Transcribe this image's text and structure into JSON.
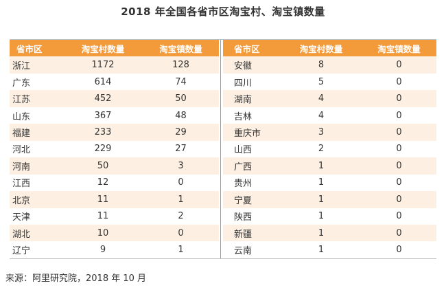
{
  "title": "2018 年全国各省市区淘宝村、淘宝镇数量",
  "headers": [
    "省市区",
    "淘宝村数量",
    "淘宝镇数量"
  ],
  "left_rows": [
    [
      "浙江",
      "1172",
      "128"
    ],
    [
      "广东",
      "614",
      "74"
    ],
    [
      "江苏",
      "452",
      "50"
    ],
    [
      "山东",
      "367",
      "48"
    ],
    [
      "福建",
      "233",
      "29"
    ],
    [
      "河北",
      "229",
      "27"
    ],
    [
      "河南",
      "50",
      "3"
    ],
    [
      "江西",
      "12",
      "0"
    ],
    [
      "北京",
      "11",
      "1"
    ],
    [
      "天津",
      "11",
      "2"
    ],
    [
      "湖北",
      "10",
      "0"
    ],
    [
      "辽宁",
      "9",
      "1"
    ]
  ],
  "right_rows": [
    [
      "安徽",
      "8",
      "0"
    ],
    [
      "四川",
      "5",
      "0"
    ],
    [
      "湖南",
      "4",
      "0"
    ],
    [
      "吉林",
      "4",
      "0"
    ],
    [
      "重庆市",
      "3",
      "0"
    ],
    [
      "山西",
      "2",
      "0"
    ],
    [
      "广西",
      "1",
      "0"
    ],
    [
      "贵州",
      "1",
      "0"
    ],
    [
      "宁夏",
      "1",
      "0"
    ],
    [
      "陕西",
      "1",
      "0"
    ],
    [
      "新疆",
      "1",
      "0"
    ],
    [
      "云南",
      "1",
      "0"
    ]
  ],
  "source": "来源：阿里研究院，2018 年 10 月",
  "colors": {
    "header_bg": "#f39a3b",
    "alt_row_bg": "#fdf0e2"
  }
}
